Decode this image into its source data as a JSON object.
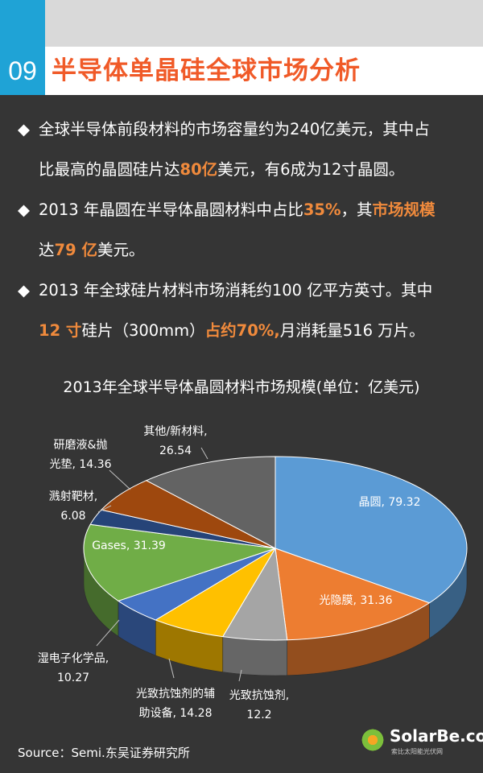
{
  "header": {
    "number": "09",
    "title": "半导体单晶硅全球市场分析"
  },
  "bullets": [
    {
      "marker": "◆",
      "line1": [
        {
          "t": "全球半导体前段材料的市场容量约为240亿美元，其中占",
          "hl": false
        }
      ],
      "line2": [
        {
          "t": "比最高的晶圆硅片达",
          "hl": false
        },
        {
          "t": "80亿",
          "hl": true
        },
        {
          "t": "美元，有6成为12寸晶圆。",
          "hl": false
        }
      ]
    },
    {
      "marker": "◆",
      "line1": [
        {
          "t": "2013 年晶圆在半导体晶圆材料中占比",
          "hl": false
        },
        {
          "t": "35%",
          "hl": true
        },
        {
          "t": "，其",
          "hl": false
        },
        {
          "t": "市场规模",
          "hl": true
        }
      ],
      "line2": [
        {
          "t": "达",
          "hl": false
        },
        {
          "t": "79 亿",
          "hl": true
        },
        {
          "t": "美元。",
          "hl": false
        }
      ]
    },
    {
      "marker": "◆",
      "line1": [
        {
          "t": "2013 年全球硅片材料市场消耗约100 亿平方英寸。其中",
          "hl": false
        }
      ],
      "line2": [
        {
          "t": "12 寸",
          "hl": true
        },
        {
          "t": "硅片（300mm）",
          "hl": false
        },
        {
          "t": "占约70%,",
          "hl": true
        },
        {
          "t": "月消耗量516 万片。",
          "hl": false
        }
      ]
    }
  ],
  "chart_data": {
    "type": "pie",
    "title": "2013年全球半导体晶圆材料市场规模(单位：亿美元)",
    "slices": [
      {
        "label": "晶圆",
        "value": 79.32,
        "color": "#5b9bd5",
        "label_lines": [
          "晶圆, 79.32"
        ]
      },
      {
        "label": "光隐膜",
        "value": 31.36,
        "color": "#ed7d31",
        "label_lines": [
          "光隐膜, 31.36"
        ]
      },
      {
        "label": "光致抗蚀剂",
        "value": 12.2,
        "color": "#a5a5a5",
        "label_lines": [
          "光致抗蚀剂,",
          "12.2"
        ]
      },
      {
        "label": "光致抗蚀剂的辅助设备",
        "value": 14.28,
        "color": "#ffc000",
        "label_lines": [
          "光致抗蚀剂的辅",
          "助设备, 14.28"
        ]
      },
      {
        "label": "湿电子化学品",
        "value": 10.27,
        "color": "#4472c4",
        "label_lines": [
          "湿电子化学品,",
          "10.27"
        ]
      },
      {
        "label": "Gases",
        "value": 31.39,
        "color": "#70ad47",
        "label_lines": [
          "Gases, 31.39"
        ]
      },
      {
        "label": "溅射靶材",
        "value": 6.08,
        "color": "#264478",
        "label_lines": [
          "溅射靶材,",
          "6.08"
        ]
      },
      {
        "label": "研磨液&抛光垫",
        "value": 14.36,
        "color": "#9e480e",
        "label_lines": [
          "研磨液&抛",
          "光垫, 14.36"
        ]
      },
      {
        "label": "其他/新材料",
        "value": 26.54,
        "color": "#636363",
        "label_lines": [
          "其他/新材料,",
          "26.54"
        ]
      }
    ]
  },
  "footer": {
    "source": "Source：Semi.东吴证券研究所",
    "logo_text": "SolarBe.com",
    "logo_sub": "索比太阳能光伏网"
  }
}
